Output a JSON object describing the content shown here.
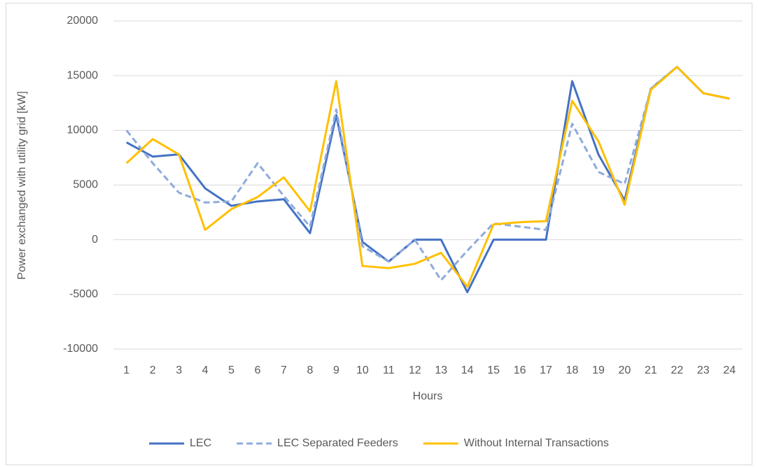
{
  "chart_data": {
    "type": "line",
    "x_label": "Hours",
    "y_label": "Power exchanged with utility grid [kW]",
    "categories": [
      "1",
      "2",
      "3",
      "4",
      "5",
      "6",
      "7",
      "8",
      "9",
      "10",
      "11",
      "12",
      "13",
      "14",
      "15",
      "16",
      "17",
      "18",
      "19",
      "20",
      "21",
      "22",
      "23",
      "24"
    ],
    "series": [
      {
        "name": "LEC",
        "color": "#4472c4",
        "style": "solid",
        "values": [
          8900,
          7600,
          7800,
          4700,
          3100,
          3500,
          3700,
          600,
          11400,
          -200,
          -2000,
          0,
          0,
          -4800,
          0,
          0,
          0,
          14500,
          7800,
          3600,
          13800,
          15800,
          13400,
          12900
        ]
      },
      {
        "name": "LEC Separated Feeders",
        "color": "#8faadc",
        "style": "dashed",
        "values": [
          10000,
          7000,
          4300,
          3400,
          3500,
          7000,
          4000,
          1200,
          11900,
          -600,
          -2000,
          0,
          -3700,
          -1000,
          1500,
          1200,
          900,
          10600,
          6200,
          5100,
          13800,
          15800,
          13400,
          12900
        ]
      },
      {
        "name": "Without Internal Transactions",
        "color": "#ffc000",
        "style": "solid",
        "values": [
          7000,
          9200,
          7800,
          900,
          2800,
          3900,
          5700,
          2600,
          14500,
          -2400,
          -2600,
          -2200,
          -1200,
          -4300,
          1400,
          1600,
          1700,
          12700,
          9000,
          3200,
          13700,
          15800,
          13400,
          12900
        ]
      }
    ],
    "ylim": [
      -10000,
      20000
    ],
    "yticks": [
      -10000,
      -5000,
      0,
      5000,
      10000,
      15000,
      20000
    ],
    "grid": true,
    "legend": "bottom"
  }
}
